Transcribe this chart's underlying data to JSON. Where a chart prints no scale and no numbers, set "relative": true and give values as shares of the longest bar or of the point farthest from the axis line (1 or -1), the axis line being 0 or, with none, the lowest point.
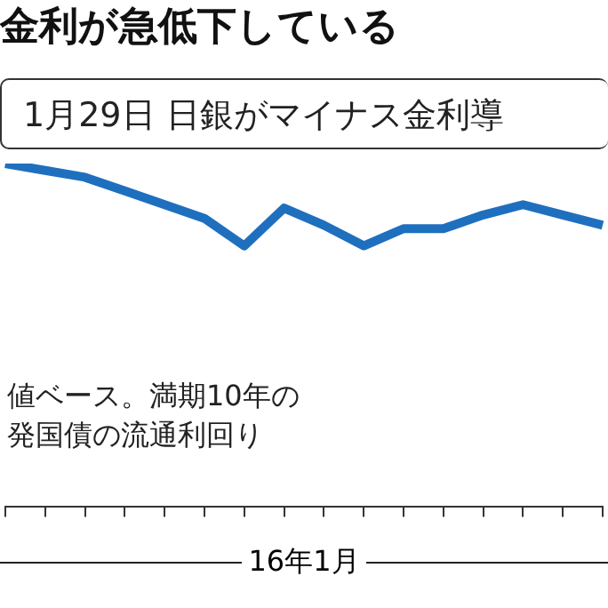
{
  "chart_data": {
    "type": "line",
    "title": "金利が急低下している",
    "xlabel": "16年1月",
    "relative": true,
    "categories": [
      null,
      null,
      null,
      null,
      null,
      null,
      null,
      null,
      null,
      null,
      null,
      null,
      null,
      null,
      null,
      null
    ],
    "series": [
      {
        "color": "#1f6fbf",
        "values": [
          1,
          0.98,
          0.96,
          0.92,
          0.88,
          0.84,
          0.76,
          0.87,
          0.82,
          0.76,
          0.81,
          0.81,
          0.85,
          0.88,
          0.85,
          0.82
        ]
      }
    ],
    "annotations": [
      "1月29日 日銀がマイナス金利導",
      "値ベース。満期10年の",
      "発国債の流通利回り"
    ],
    "grid": false,
    "legend": false,
    "marker": "none",
    "line_style": "solid"
  }
}
